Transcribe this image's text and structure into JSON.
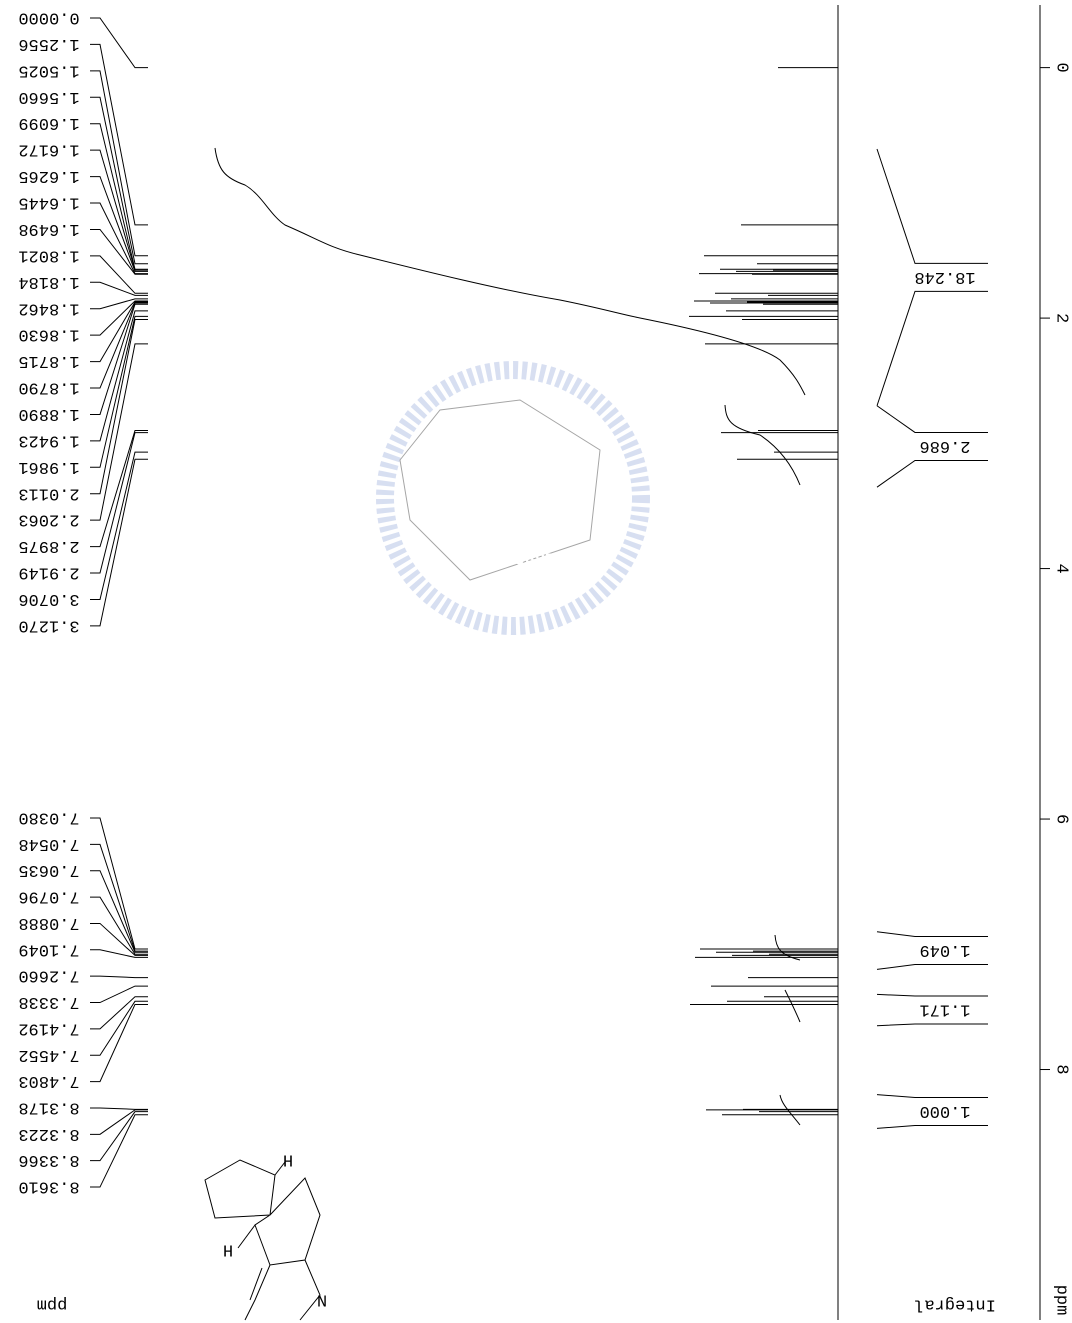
{
  "chart_data": {
    "type": "nmr",
    "xlim": [
      -0.5,
      10
    ],
    "xticks": [
      0,
      2,
      4,
      6,
      8
    ],
    "xlabel": "ppm",
    "peak_values": [
      0,
      1.2556,
      1.5025,
      1.566,
      1.6099,
      1.6172,
      1.6265,
      1.6445,
      1.6498,
      1.8021,
      1.8184,
      1.8462,
      1.863,
      1.8715,
      1.879,
      1.889,
      1.9423,
      1.9861,
      2.0113,
      2.2063,
      2.8975,
      2.9149,
      3.0706,
      3.127,
      7.038,
      7.0548,
      7.0635,
      7.0796,
      7.0888,
      7.1049,
      7.266,
      7.3338,
      7.4192,
      7.4552,
      7.4803,
      8.3178,
      8.3223,
      8.3366,
      8.361
    ],
    "peak_labels": [
      "0.0000",
      "1.2556",
      "1.5025",
      "1.5660",
      "1.6099",
      "1.6172",
      "1.6265",
      "1.6445",
      "1.6498",
      "1.8021",
      "1.8184",
      "1.8462",
      "1.8630",
      "1.8715",
      "1.8790",
      "1.8890",
      "1.9423",
      "1.9861",
      "2.0113",
      "2.2063",
      "2.8975",
      "2.9149",
      "3.0706",
      "3.1270",
      "7.0380",
      "7.0548",
      "7.0635",
      "7.0796",
      "7.0888",
      "7.1049",
      "7.2660",
      "7.3338",
      "7.4192",
      "7.4552",
      "7.4803",
      "8.3178",
      "8.3223",
      "8.3366",
      "8.3610"
    ],
    "peak_axis_label": "ppm",
    "integrals": {
      "values": [
        18.248,
        2.686,
        1.049,
        1.171,
        1
      ],
      "value_labels": [
        "18.248",
        "2.686",
        "1.049",
        "1.171",
        "1.000"
      ],
      "ranges": [
        [
          0.65,
          2.7
        ],
        [
          2.7,
          3.35
        ],
        [
          6.9,
          7.2
        ],
        [
          7.4,
          7.65
        ],
        [
          8.2,
          8.47
        ]
      ],
      "label": "Integral"
    }
  },
  "structure": {
    "atoms": [
      "H",
      "H",
      "N"
    ]
  },
  "watermark": "1896"
}
